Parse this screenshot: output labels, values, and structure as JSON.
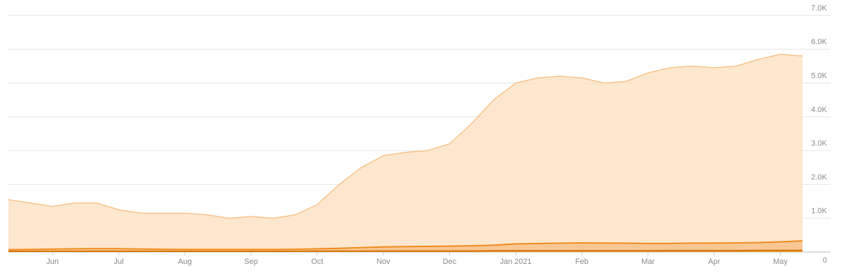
{
  "chart_data": {
    "type": "area",
    "categories": [
      null,
      null,
      "Jun",
      null,
      null,
      "Jul",
      null,
      null,
      "Aug",
      null,
      null,
      "Sep",
      null,
      null,
      "Oct",
      null,
      null,
      "Nov",
      null,
      null,
      "Dec",
      null,
      null,
      "Jan 2021",
      null,
      null,
      "Feb",
      null,
      null,
      "Mar",
      null,
      null,
      "Apr",
      null,
      null,
      "May",
      null
    ],
    "series": [
      {
        "color": "#f7c48d",
        "fill": "#fde3c6",
        "values": [
          1550,
          1450,
          1350,
          1450,
          1450,
          1250,
          1150,
          1150,
          1150,
          1100,
          1000,
          1050,
          1000,
          1100,
          1400,
          2000,
          2500,
          2850,
          2950,
          3000,
          3200,
          3800,
          4500,
          5000,
          5150,
          5200,
          5150,
          5000,
          5050,
          5300,
          5450,
          5500,
          5450,
          5500,
          5700,
          5850,
          5800
        ]
      },
      {
        "color": "#f08c1e",
        "fill": "#f7c18a",
        "values": [
          70,
          75,
          85,
          95,
          100,
          100,
          90,
          80,
          75,
          75,
          75,
          75,
          75,
          80,
          95,
          110,
          130,
          150,
          160,
          165,
          175,
          185,
          200,
          240,
          250,
          260,
          270,
          265,
          260,
          255,
          255,
          260,
          265,
          270,
          280,
          300,
          330
        ]
      },
      {
        "color": "#d97400",
        "fill": "#e99a40",
        "values": [
          20,
          20,
          20,
          20,
          20,
          20,
          20,
          20,
          20,
          20,
          20,
          20,
          20,
          20,
          25,
          25,
          25,
          30,
          30,
          30,
          30,
          30,
          35,
          35,
          35,
          35,
          35,
          35,
          35,
          35,
          40,
          40,
          40,
          40,
          45,
          45,
          45
        ]
      }
    ],
    "ylim": [
      0,
      7000
    ],
    "yticks": [
      0,
      {
        "value": 1000,
        "label": "1.0K"
      },
      {
        "value": 2000,
        "label": "2.0K"
      },
      {
        "value": 3000,
        "label": "3.0K"
      },
      {
        "value": 4000,
        "label": "4.0K"
      },
      {
        "value": 5000,
        "label": "5.0K"
      },
      {
        "value": 6000,
        "label": "6.0K"
      },
      {
        "value": 7000,
        "label": "7.0K"
      }
    ],
    "grid": true
  }
}
